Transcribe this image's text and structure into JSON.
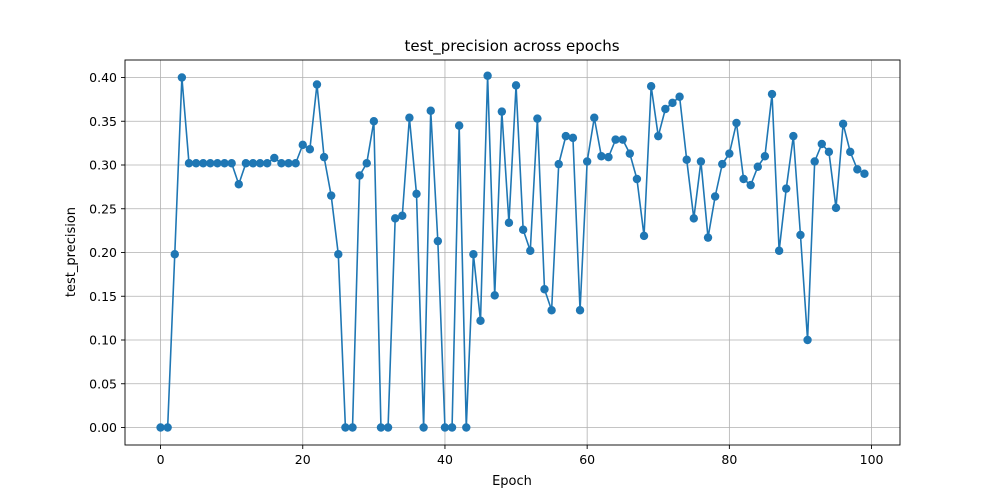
{
  "chart_data": {
    "type": "line",
    "title": "test_precision across epochs",
    "xlabel": "Epoch",
    "ylabel": "test_precision",
    "xlim": [
      -5,
      104
    ],
    "ylim": [
      -0.02,
      0.42
    ],
    "xticks": [
      0,
      20,
      40,
      60,
      80,
      100
    ],
    "yticks": [
      0.0,
      0.05,
      0.1,
      0.15,
      0.2,
      0.25,
      0.3,
      0.35,
      0.4
    ],
    "grid": true,
    "color": "#1f77b4",
    "marker": "circle",
    "series": [
      {
        "x": [
          0,
          1,
          2,
          3,
          4,
          5,
          6,
          7,
          8,
          9,
          10,
          11,
          12,
          13,
          14,
          15,
          16,
          17,
          18,
          19,
          20,
          21,
          22,
          23,
          24,
          25,
          26,
          27,
          28,
          29,
          30,
          31,
          32,
          33,
          34,
          35,
          36,
          37,
          38,
          39,
          40,
          41,
          42,
          43,
          44,
          45,
          46,
          47,
          48,
          49,
          50,
          51,
          52,
          53,
          54,
          55,
          56,
          57,
          58,
          59,
          60,
          61,
          62,
          63,
          64,
          65,
          66,
          67,
          68,
          69,
          70,
          71,
          72,
          73,
          74,
          75,
          76,
          77,
          78,
          79,
          80,
          81,
          82,
          83,
          84,
          85,
          86,
          87,
          88,
          89,
          90,
          91,
          92,
          93,
          94,
          95,
          96,
          97,
          98,
          99
        ],
        "values": [
          0.0,
          0.0,
          0.198,
          0.4,
          0.302,
          0.302,
          0.302,
          0.302,
          0.302,
          0.302,
          0.302,
          0.278,
          0.302,
          0.302,
          0.302,
          0.302,
          0.308,
          0.302,
          0.302,
          0.302,
          0.323,
          0.318,
          0.392,
          0.309,
          0.265,
          0.198,
          0.0,
          0.0,
          0.288,
          0.302,
          0.35,
          0.0,
          0.0,
          0.239,
          0.242,
          0.354,
          0.267,
          0.0,
          0.362,
          0.213,
          0.0,
          0.0,
          0.345,
          0.0,
          0.198,
          0.122,
          0.402,
          0.151,
          0.361,
          0.234,
          0.391,
          0.226,
          0.202,
          0.353,
          0.158,
          0.134,
          0.301,
          0.333,
          0.331,
          0.134,
          0.304,
          0.354,
          0.31,
          0.309,
          0.329,
          0.329,
          0.313,
          0.284,
          0.219,
          0.39,
          0.333,
          0.364,
          0.371,
          0.378,
          0.306,
          0.239,
          0.304,
          0.217,
          0.264,
          0.301,
          0.313,
          0.348,
          0.284,
          0.277,
          0.298,
          0.31,
          0.381,
          0.202,
          0.273,
          0.333,
          0.22,
          0.1,
          0.304,
          0.324,
          0.315,
          0.251,
          0.347,
          0.315,
          0.295,
          0.29
        ]
      }
    ]
  }
}
